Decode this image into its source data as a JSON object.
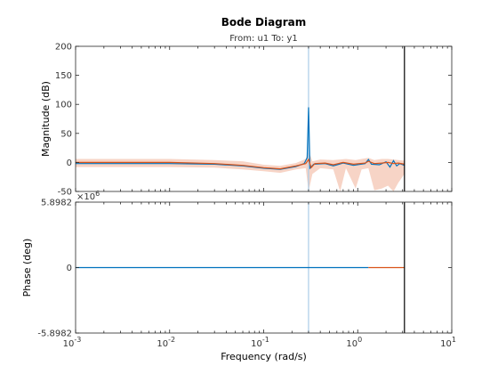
{
  "chart_data": {
    "type": "line",
    "title": "Bode Diagram",
    "subtitle": "From: u1  To: y1",
    "xlabel": "Frequency  (rad/s)",
    "x_scale": "log",
    "xlim": [
      0.001,
      10
    ],
    "x_ticks": [
      {
        "value": 0.001,
        "base": "10",
        "exp": "-3"
      },
      {
        "value": 0.01,
        "base": "10",
        "exp": "-2"
      },
      {
        "value": 0.1,
        "base": "10",
        "exp": "-1"
      },
      {
        "value": 1,
        "base": "10",
        "exp": "0"
      },
      {
        "value": 10,
        "base": "10",
        "exp": "1"
      }
    ],
    "vertical_marker_x": 3.14,
    "resonance_x": 0.3,
    "panels": [
      {
        "id": "magnitude",
        "ylabel": "Magnitude (dB)",
        "ylim": [
          -50,
          200
        ],
        "y_ticks": [
          {
            "value": -50,
            "label": "-50"
          },
          {
            "value": 0,
            "label": "0"
          },
          {
            "value": 50,
            "label": "50"
          },
          {
            "value": 100,
            "label": "100"
          },
          {
            "value": 150,
            "label": "150"
          },
          {
            "value": 200,
            "label": "200"
          }
        ],
        "series": [
          {
            "color": "#0072BD",
            "points": [
              [
                0.001,
                -2
              ],
              [
                0.003,
                -2
              ],
              [
                0.01,
                -2
              ],
              [
                0.03,
                -3
              ],
              [
                0.06,
                -6
              ],
              [
                0.1,
                -10
              ],
              [
                0.15,
                -12
              ],
              [
                0.22,
                -7
              ],
              [
                0.27,
                -2
              ],
              [
                0.29,
                8
              ],
              [
                0.3,
                95
              ],
              [
                0.31,
                -10
              ],
              [
                0.34,
                -3
              ],
              [
                0.45,
                -2
              ],
              [
                0.55,
                -6
              ],
              [
                0.7,
                -1
              ],
              [
                0.9,
                -5
              ],
              [
                1.2,
                -2
              ],
              [
                1.3,
                5
              ],
              [
                1.4,
                -3
              ],
              [
                1.7,
                -4
              ],
              [
                2.0,
                1
              ],
              [
                2.2,
                -8
              ],
              [
                2.4,
                3
              ],
              [
                2.6,
                -6
              ],
              [
                2.8,
                -2
              ],
              [
                3.14,
                -5
              ]
            ]
          },
          {
            "color": "#D95319",
            "points": [
              [
                0.001,
                0
              ],
              [
                0.003,
                0
              ],
              [
                0.01,
                0
              ],
              [
                0.03,
                -2
              ],
              [
                0.06,
                -5
              ],
              [
                0.1,
                -9
              ],
              [
                0.15,
                -11
              ],
              [
                0.22,
                -6
              ],
              [
                0.28,
                -2
              ],
              [
                0.3,
                5
              ],
              [
                0.32,
                -9
              ],
              [
                0.35,
                -2
              ],
              [
                0.45,
                -1
              ],
              [
                0.55,
                -4
              ],
              [
                0.7,
                0
              ],
              [
                0.9,
                -3
              ],
              [
                1.2,
                -1
              ],
              [
                1.3,
                2
              ],
              [
                1.5,
                -2
              ],
              [
                1.8,
                -1
              ],
              [
                2.1,
                0
              ],
              [
                2.4,
                -2
              ],
              [
                2.7,
                -1
              ],
              [
                3.14,
                -3
              ]
            ]
          }
        ],
        "confidence_band": {
          "color": "#F4C6B3",
          "points": [
            [
              0.001,
              -8,
              6
            ],
            [
              0.003,
              -8,
              6
            ],
            [
              0.01,
              -8,
              6
            ],
            [
              0.03,
              -9,
              4
            ],
            [
              0.06,
              -12,
              2
            ],
            [
              0.1,
              -15,
              -4
            ],
            [
              0.15,
              -18,
              -6
            ],
            [
              0.22,
              -12,
              -1
            ],
            [
              0.28,
              -10,
              6
            ],
            [
              0.3,
              -50,
              20
            ],
            [
              0.33,
              -20,
              2
            ],
            [
              0.4,
              -10,
              5
            ],
            [
              0.55,
              -12,
              4
            ],
            [
              0.65,
              -50,
              5
            ],
            [
              0.75,
              -10,
              6
            ],
            [
              0.95,
              -45,
              4
            ],
            [
              1.1,
              -12,
              6
            ],
            [
              1.3,
              -10,
              8
            ],
            [
              1.5,
              -48,
              4
            ],
            [
              1.8,
              -45,
              6
            ],
            [
              2.1,
              -40,
              6
            ],
            [
              2.4,
              -50,
              5
            ],
            [
              2.7,
              -35,
              4
            ],
            [
              3.14,
              -20,
              3
            ]
          ]
        }
      },
      {
        "id": "phase",
        "ylabel": "Phase (deg)",
        "exponent": {
          "base": "×10",
          "exp": "6"
        },
        "ylim": [
          -5.8982,
          5.8982
        ],
        "y_ticks": [
          {
            "value": -5.8982,
            "label": "-5.8982"
          },
          {
            "value": 0,
            "label": "0"
          },
          {
            "value": 5.8982,
            "label": "5.8982"
          }
        ],
        "series": [
          {
            "color": "#0072BD",
            "points": [
              [
                0.001,
                0
              ],
              [
                1.3,
                0
              ]
            ]
          },
          {
            "color": "#D95319",
            "points": [
              [
                1.3,
                0
              ],
              [
                3.14,
                0
              ]
            ]
          }
        ]
      }
    ]
  }
}
